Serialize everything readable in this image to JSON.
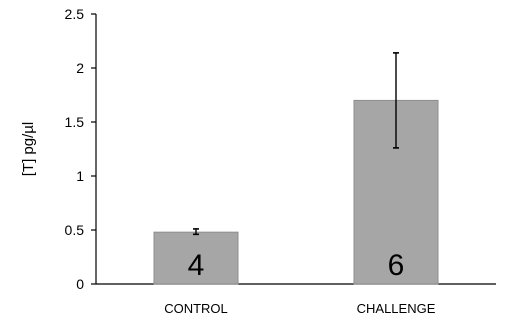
{
  "chart_data": {
    "type": "bar",
    "title": "",
    "xlabel": "",
    "ylabel": "[T] pg/µl",
    "ylim": [
      0,
      2.5
    ],
    "yticks": [
      0,
      0.5,
      1,
      1.5,
      2,
      2.5
    ],
    "ytick_labels": [
      "0",
      "0.5",
      "1",
      "1.5",
      "2",
      "2.5"
    ],
    "grid": false,
    "categories": [
      "CONTROL",
      "CHALLENGE"
    ],
    "values": [
      0.48,
      1.7
    ],
    "error_bars": [
      [
        0.46,
        0.51
      ],
      [
        1.26,
        2.14
      ]
    ],
    "bar_labels": [
      "4",
      "6"
    ],
    "colors": {
      "bar_fill": "#a6a6a6",
      "bar_stroke": "#8f8f8f",
      "axis": "#000000"
    }
  }
}
